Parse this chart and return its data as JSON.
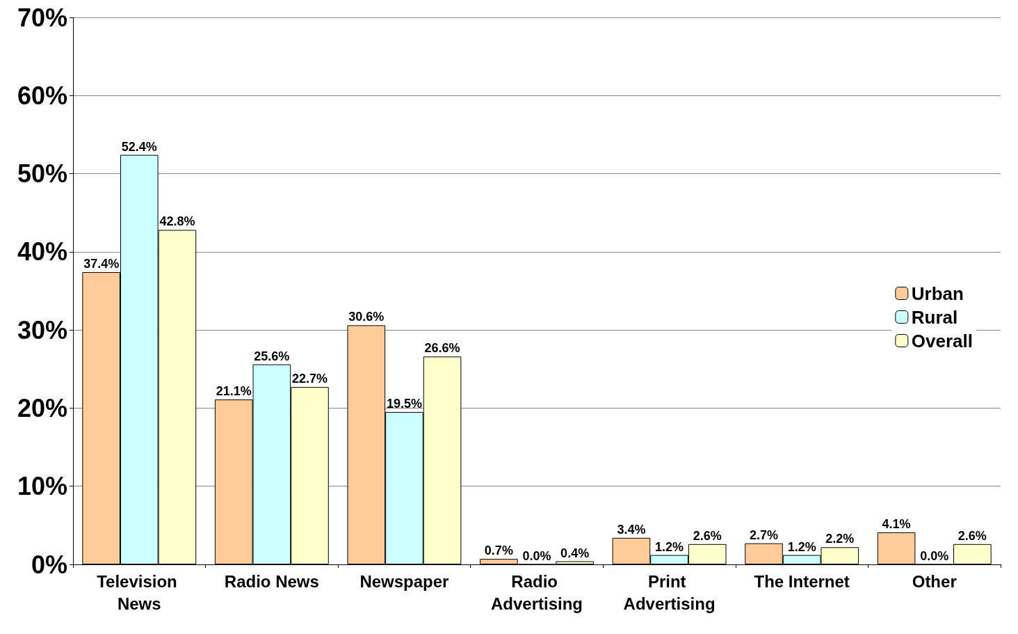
{
  "chart_data": {
    "type": "bar",
    "categories": [
      "Television News",
      "Radio News",
      "Newspaper",
      "Radio Advertising",
      "Print Advertising",
      "The Internet",
      "Other"
    ],
    "series": [
      {
        "name": "Urban",
        "color": "#ffcc99",
        "values": [
          37.4,
          21.1,
          30.6,
          0.7,
          3.4,
          2.7,
          4.1
        ],
        "value_labels": [
          "37.4%",
          "21.1%",
          "30.6%",
          "0.7%",
          "3.4%",
          "2.7%",
          "4.1%"
        ]
      },
      {
        "name": "Rural",
        "color": "#ccffff",
        "values": [
          52.4,
          25.6,
          19.5,
          0.0,
          1.2,
          1.2,
          0.0
        ],
        "value_labels": [
          "52.4%",
          "25.6%",
          "19.5%",
          "0.0%",
          "1.2%",
          "1.2%",
          "0.0%"
        ]
      },
      {
        "name": "Overall",
        "color": "#ffffcc",
        "values": [
          42.8,
          22.7,
          26.6,
          0.4,
          2.6,
          2.2,
          2.6
        ],
        "value_labels": [
          "42.8%",
          "22.7%",
          "26.6%",
          "0.4%",
          "2.6%",
          "2.2%",
          "2.6%"
        ]
      }
    ],
    "ylim": [
      0,
      70
    ],
    "yticks": [
      {
        "value": 0,
        "label": "0%"
      },
      {
        "value": 10,
        "label": "10%"
      },
      {
        "value": 20,
        "label": "20%"
      },
      {
        "value": 30,
        "label": "30%"
      },
      {
        "value": 40,
        "label": "40%"
      },
      {
        "value": 50,
        "label": "50%"
      },
      {
        "value": 60,
        "label": "60%"
      },
      {
        "value": 70,
        "label": "70%"
      }
    ],
    "grid": "y",
    "legend": "right"
  }
}
